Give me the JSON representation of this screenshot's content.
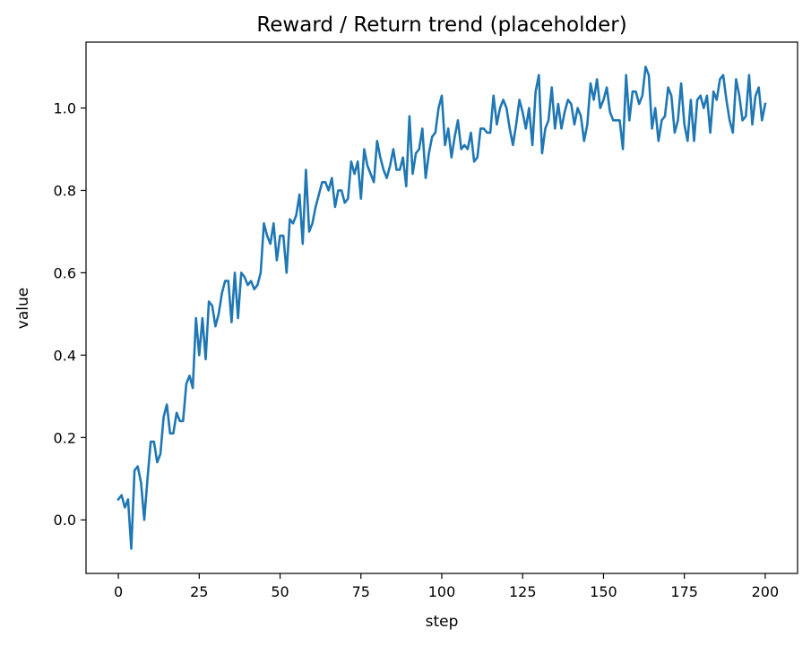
{
  "chart_data": {
    "type": "line",
    "title": "Reward / Return trend (placeholder)",
    "xlabel": "step",
    "ylabel": "value",
    "xlim": [
      -10,
      210
    ],
    "ylim": [
      -0.13,
      1.16
    ],
    "grid": false,
    "x_ticks": [
      0,
      25,
      50,
      75,
      100,
      125,
      150,
      175,
      200
    ],
    "x_tick_labels": [
      "0",
      "25",
      "50",
      "75",
      "100",
      "125",
      "150",
      "175",
      "200"
    ],
    "y_ticks": [
      0.0,
      0.2,
      0.4,
      0.6,
      0.8,
      1.0
    ],
    "y_tick_labels": [
      "0.0",
      "0.2",
      "0.4",
      "0.6",
      "0.8",
      "1.0"
    ],
    "series": [
      {
        "color": "#1f77b4",
        "x_start": 0,
        "x_step": 1,
        "values": [
          0.05,
          0.06,
          0.03,
          0.05,
          -0.07,
          0.12,
          0.13,
          0.09,
          0.0,
          0.1,
          0.19,
          0.19,
          0.14,
          0.16,
          0.25,
          0.28,
          0.21,
          0.21,
          0.26,
          0.24,
          0.24,
          0.33,
          0.35,
          0.32,
          0.49,
          0.4,
          0.49,
          0.39,
          0.53,
          0.52,
          0.47,
          0.5,
          0.55,
          0.58,
          0.58,
          0.48,
          0.6,
          0.49,
          0.6,
          0.59,
          0.57,
          0.58,
          0.56,
          0.57,
          0.6,
          0.72,
          0.69,
          0.67,
          0.72,
          0.63,
          0.69,
          0.69,
          0.6,
          0.73,
          0.72,
          0.74,
          0.79,
          0.67,
          0.85,
          0.7,
          0.72,
          0.76,
          0.79,
          0.82,
          0.82,
          0.8,
          0.83,
          0.76,
          0.8,
          0.8,
          0.77,
          0.78,
          0.87,
          0.84,
          0.87,
          0.78,
          0.9,
          0.86,
          0.84,
          0.82,
          0.92,
          0.88,
          0.85,
          0.83,
          0.86,
          0.9,
          0.85,
          0.85,
          0.88,
          0.81,
          0.98,
          0.84,
          0.89,
          0.9,
          0.95,
          0.83,
          0.89,
          0.93,
          0.94,
          1.0,
          1.03,
          0.91,
          0.95,
          0.88,
          0.93,
          0.97,
          0.9,
          0.91,
          0.9,
          0.94,
          0.87,
          0.88,
          0.95,
          0.95,
          0.94,
          0.94,
          1.03,
          0.96,
          1.0,
          1.02,
          1.0,
          0.95,
          0.91,
          0.96,
          1.02,
          0.99,
          0.95,
          1.0,
          0.91,
          1.04,
          1.08,
          0.89,
          0.95,
          0.97,
          1.05,
          0.95,
          1.01,
          0.95,
          0.99,
          1.02,
          1.01,
          0.96,
          1.0,
          0.98,
          0.92,
          0.96,
          1.06,
          1.02,
          1.07,
          1.0,
          1.02,
          1.05,
          0.99,
          0.97,
          0.97,
          0.97,
          0.9,
          1.08,
          0.97,
          1.04,
          1.04,
          1.01,
          1.03,
          1.1,
          1.08,
          0.95,
          1.0,
          0.92,
          0.97,
          0.98,
          1.05,
          1.03,
          0.94,
          0.97,
          1.06,
          0.96,
          0.92,
          1.02,
          0.92,
          1.02,
          1.03,
          1.0,
          1.03,
          0.94,
          1.04,
          1.02,
          1.07,
          1.08,
          1.02,
          0.97,
          0.94,
          1.07,
          1.03,
          0.97,
          0.98,
          1.08,
          0.96,
          1.03,
          1.05,
          0.97,
          1.01
        ]
      }
    ]
  }
}
